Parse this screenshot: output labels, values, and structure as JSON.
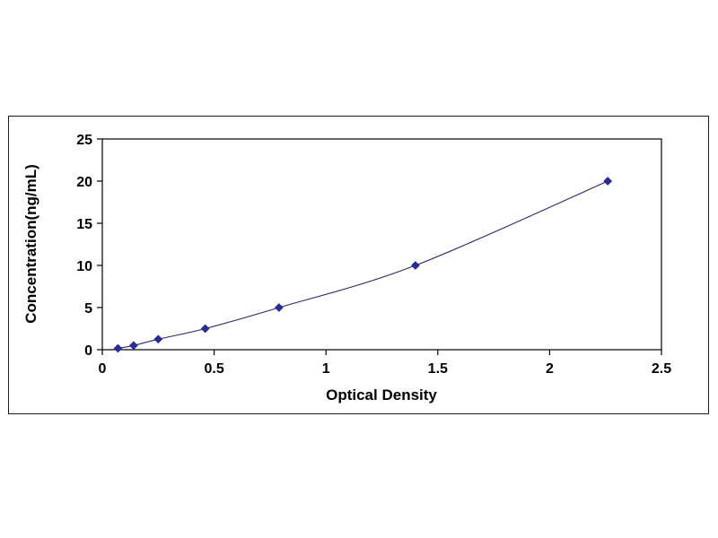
{
  "chart_data": {
    "type": "line",
    "title": "",
    "xlabel": "Optical Density",
    "ylabel": "Concentration(ng/mL)",
    "x": [
      0.07,
      0.14,
      0.25,
      0.46,
      0.79,
      1.4,
      2.26
    ],
    "y": [
      0.16,
      0.5,
      1.25,
      2.5,
      5,
      10,
      20
    ],
    "xlim": [
      0,
      2.5
    ],
    "ylim": [
      0,
      25
    ],
    "x_ticks": [
      "0",
      "0.5",
      "1",
      "1.5",
      "2",
      "2.5"
    ],
    "y_ticks": [
      "0",
      "5",
      "10",
      "15",
      "20",
      "25"
    ],
    "legend": "none",
    "grid": "off",
    "marker": "diamond",
    "colors": {
      "marker": "#2b2b94",
      "line": "#26266e",
      "axis": "#000000",
      "background": "#ffffff"
    }
  }
}
